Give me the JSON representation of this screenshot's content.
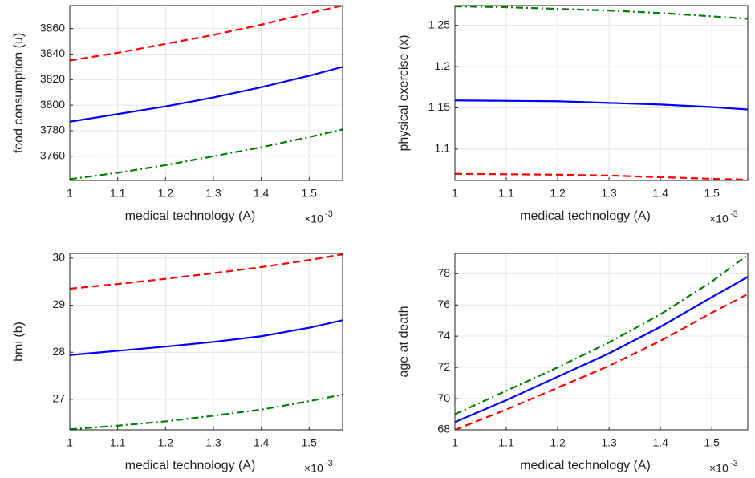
{
  "chart_data": [
    {
      "type": "line",
      "x_label": "medical technology (A)",
      "y_label": "food consumption (u)",
      "x_multiplier": "×10",
      "x_exponent": "-3",
      "x": [
        1,
        1.1,
        1.2,
        1.3,
        1.4,
        1.5,
        1.57
      ],
      "xlim": [
        1,
        1.57
      ],
      "xticks": [
        1,
        1.1,
        1.2,
        1.3,
        1.4,
        1.5
      ],
      "ylim": [
        3741,
        3878
      ],
      "yticks": [
        3760,
        3780,
        3800,
        3820,
        3840,
        3860
      ],
      "grid": true,
      "series": [
        {
          "color": "#ff0000",
          "style": "dashed",
          "values": [
            3835,
            3841,
            3848,
            3855,
            3863,
            3872,
            3878
          ]
        },
        {
          "color": "#0000ff",
          "style": "solid",
          "values": [
            3787,
            3793,
            3799,
            3806,
            3814,
            3823,
            3830
          ]
        },
        {
          "color": "#008000",
          "style": "dashdot",
          "values": [
            3742,
            3747,
            3753,
            3760,
            3767,
            3775,
            3781
          ]
        }
      ]
    },
    {
      "type": "line",
      "x_label": "medical technology (A)",
      "y_label": "physical exercise (x)",
      "x_multiplier": "×10",
      "x_exponent": "-3",
      "x": [
        1,
        1.1,
        1.2,
        1.3,
        1.4,
        1.5,
        1.57
      ],
      "xlim": [
        1,
        1.57
      ],
      "xticks": [
        1,
        1.1,
        1.2,
        1.3,
        1.4,
        1.5
      ],
      "ylim": [
        1.062,
        1.274
      ],
      "yticks": [
        1.1,
        1.15,
        1.2,
        1.25
      ],
      "grid": true,
      "series": [
        {
          "color": "#008000",
          "style": "dashdot",
          "values": [
            1.273,
            1.272,
            1.27,
            1.268,
            1.265,
            1.261,
            1.258
          ]
        },
        {
          "color": "#0000ff",
          "style": "solid",
          "values": [
            1.159,
            1.1585,
            1.158,
            1.156,
            1.154,
            1.151,
            1.148
          ]
        },
        {
          "color": "#ff0000",
          "style": "dashed",
          "values": [
            1.07,
            1.0695,
            1.069,
            1.068,
            1.066,
            1.064,
            1.063
          ]
        }
      ]
    },
    {
      "type": "line",
      "x_label": "medical technology (A)",
      "y_label": "bmi (b)",
      "x_multiplier": "×10",
      "x_exponent": "-3",
      "x": [
        1,
        1.1,
        1.2,
        1.3,
        1.4,
        1.5,
        1.57
      ],
      "xlim": [
        1,
        1.57
      ],
      "xticks": [
        1,
        1.1,
        1.2,
        1.3,
        1.4,
        1.5
      ],
      "ylim": [
        26.35,
        30.1
      ],
      "yticks": [
        27,
        28,
        29,
        30
      ],
      "grid": true,
      "series": [
        {
          "color": "#ff0000",
          "style": "dashed",
          "values": [
            29.35,
            29.45,
            29.56,
            29.68,
            29.81,
            29.96,
            30.08
          ]
        },
        {
          "color": "#0000ff",
          "style": "solid",
          "values": [
            27.94,
            28.03,
            28.12,
            28.22,
            28.34,
            28.52,
            28.68
          ]
        },
        {
          "color": "#008000",
          "style": "dashdot",
          "values": [
            26.36,
            26.44,
            26.53,
            26.65,
            26.78,
            26.96,
            27.1
          ]
        }
      ]
    },
    {
      "type": "line",
      "x_label": "medical technology (A)",
      "y_label": "age at death",
      "x_multiplier": "×10",
      "x_exponent": "-3",
      "x": [
        1,
        1.1,
        1.2,
        1.3,
        1.4,
        1.5,
        1.57
      ],
      "xlim": [
        1,
        1.57
      ],
      "xticks": [
        1,
        1.1,
        1.2,
        1.3,
        1.4,
        1.5
      ],
      "ylim": [
        68,
        79.3
      ],
      "yticks": [
        68,
        70,
        72,
        74,
        76,
        78
      ],
      "grid": true,
      "series": [
        {
          "color": "#008000",
          "style": "dashdot",
          "values": [
            69.0,
            70.5,
            72.0,
            73.6,
            75.4,
            77.5,
            79.2
          ]
        },
        {
          "color": "#0000ff",
          "style": "solid",
          "values": [
            68.5,
            69.9,
            71.4,
            72.9,
            74.6,
            76.5,
            77.8
          ]
        },
        {
          "color": "#ff0000",
          "style": "dashed",
          "values": [
            68.0,
            69.3,
            70.7,
            72.1,
            73.7,
            75.5,
            76.7
          ]
        }
      ]
    }
  ]
}
